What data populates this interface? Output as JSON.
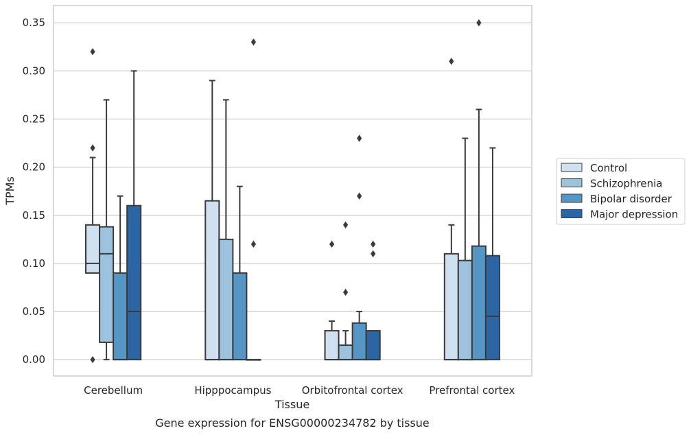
{
  "chart_data": {
    "type": "box",
    "title": "",
    "caption": "Gene expression for ENSG00000234782 by tissue",
    "xlabel": "Tissue",
    "ylabel": "TPMs",
    "ylim": [
      -0.017,
      0.368
    ],
    "yticks": [
      0.0,
      0.05,
      0.1,
      0.15,
      0.2,
      0.25,
      0.3,
      0.35
    ],
    "ytick_labels": [
      "0.00",
      "0.05",
      "0.10",
      "0.15",
      "0.20",
      "0.25",
      "0.30",
      "0.35"
    ],
    "grid": "horizontal",
    "legend_position": "right",
    "categories": [
      "Cerebellum",
      "Hipppocampus",
      "Orbitofrontal cortex",
      "Prefrontal cortex"
    ],
    "series": [
      {
        "name": "Control",
        "color": "#cfe0f0",
        "boxes": [
          {
            "q1": 0.09,
            "median": 0.1,
            "q3": 0.14,
            "whisker_low": 0.09,
            "whisker_high": 0.21,
            "outliers": [
              0.22,
              0.32,
              0.0
            ]
          },
          {
            "q1": 0.0,
            "median": 0.0,
            "q3": 0.165,
            "whisker_low": 0.0,
            "whisker_high": 0.29,
            "outliers": []
          },
          {
            "q1": 0.0,
            "median": 0.0,
            "q3": 0.03,
            "whisker_low": 0.0,
            "whisker_high": 0.04,
            "outliers": [
              0.12
            ]
          },
          {
            "q1": 0.0,
            "median": 0.0,
            "q3": 0.11,
            "whisker_low": 0.0,
            "whisker_high": 0.14,
            "outliers": [
              0.31
            ]
          }
        ]
      },
      {
        "name": "Schizophrenia",
        "color": "#9dc2dd",
        "boxes": [
          {
            "q1": 0.018,
            "median": 0.11,
            "q3": 0.138,
            "whisker_low": 0.0,
            "whisker_high": 0.27,
            "outliers": []
          },
          {
            "q1": 0.0,
            "median": 0.0,
            "q3": 0.125,
            "whisker_low": 0.0,
            "whisker_high": 0.27,
            "outliers": []
          },
          {
            "q1": 0.0,
            "median": 0.0,
            "q3": 0.015,
            "whisker_low": 0.0,
            "whisker_high": 0.03,
            "outliers": [
              0.07,
              0.14
            ]
          },
          {
            "q1": 0.0,
            "median": 0.0,
            "q3": 0.103,
            "whisker_low": 0.0,
            "whisker_high": 0.23,
            "outliers": []
          }
        ]
      },
      {
        "name": "Bipolar disorder",
        "color": "#5596c4",
        "boxes": [
          {
            "q1": 0.0,
            "median": 0.0,
            "q3": 0.09,
            "whisker_low": 0.0,
            "whisker_high": 0.17,
            "outliers": []
          },
          {
            "q1": 0.0,
            "median": 0.0,
            "q3": 0.09,
            "whisker_low": 0.0,
            "whisker_high": 0.18,
            "outliers": []
          },
          {
            "q1": 0.0,
            "median": 0.0,
            "q3": 0.038,
            "whisker_low": 0.0,
            "whisker_high": 0.05,
            "outliers": [
              0.17,
              0.23
            ]
          },
          {
            "q1": 0.0,
            "median": 0.0,
            "q3": 0.118,
            "whisker_low": 0.0,
            "whisker_high": 0.26,
            "outliers": [
              0.35
            ]
          }
        ]
      },
      {
        "name": "Major depression",
        "color": "#2c65a3",
        "boxes": [
          {
            "q1": 0.0,
            "median": 0.05,
            "q3": 0.16,
            "whisker_low": 0.0,
            "whisker_high": 0.3,
            "outliers": []
          },
          {
            "q1": 0.0,
            "median": 0.0,
            "q3": 0.0,
            "whisker_low": 0.0,
            "whisker_high": 0.0,
            "outliers": [
              0.12,
              0.33
            ]
          },
          {
            "q1": 0.0,
            "median": 0.0,
            "q3": 0.03,
            "whisker_low": 0.0,
            "whisker_high": 0.03,
            "outliers": [
              0.11,
              0.12
            ]
          },
          {
            "q1": 0.0,
            "median": 0.045,
            "q3": 0.108,
            "whisker_low": 0.0,
            "whisker_high": 0.22,
            "outliers": []
          }
        ]
      }
    ]
  }
}
